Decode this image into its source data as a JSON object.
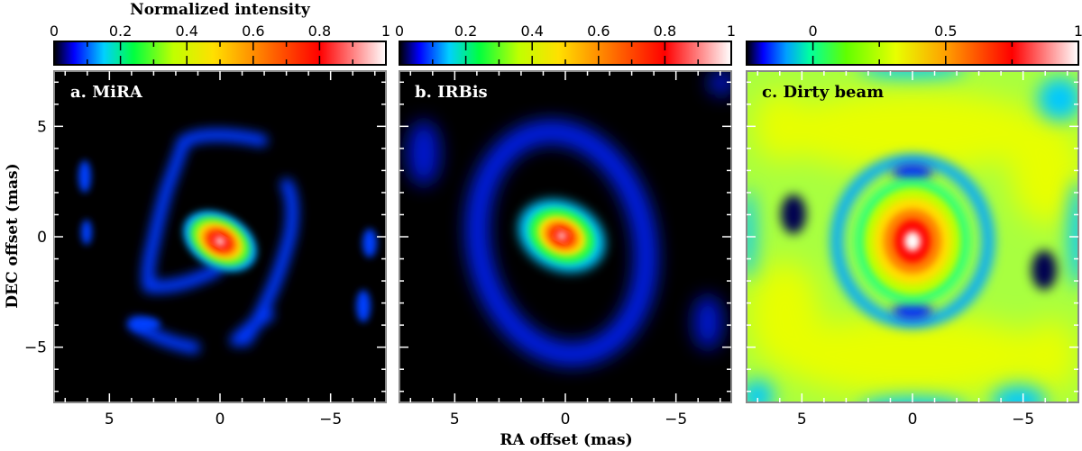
{
  "figure": {
    "colorbar_title": "Normalized intensity",
    "xlabel": "RA offset (mas)",
    "ylabel": "DEC offset (mas)"
  },
  "chart_data": [
    {
      "type": "heatmap",
      "panel_label": "a. MiRA",
      "xlim": [
        7.5,
        -7.5
      ],
      "ylim": [
        -7.5,
        7.5
      ],
      "xticks": [
        5,
        0,
        -5
      ],
      "yticks": [
        5,
        0,
        -5
      ],
      "colorbar": {
        "range": [
          0,
          1
        ],
        "ticks": [
          0,
          0.2,
          0.4,
          0.6,
          0.8,
          1
        ],
        "tick_labels": [
          "0",
          "0.2",
          "0.4",
          "0.6",
          "0.8",
          "1"
        ],
        "colormap": "black-blue-cyan-green-yellow-orange-red-white"
      },
      "background_level": 0,
      "peak": {
        "x": 0,
        "y": 0,
        "value": 1
      },
      "features": [
        {
          "kind": "central-ellipse",
          "x": 0,
          "y": 0,
          "size": [
            2.0,
            1.3
          ],
          "angle_deg": 30,
          "peak": 1.0
        },
        {
          "kind": "arc",
          "description_level": 0.15,
          "path": [
            [
              1.7,
              3.8
            ],
            [
              1.2,
              2.8
            ],
            [
              2.2,
              2.4
            ],
            [
              2.8,
              0.8
            ],
            [
              3.0,
              -1.2
            ],
            [
              3.3,
              -3.0
            ],
            [
              3.8,
              -4.3
            ]
          ]
        },
        {
          "kind": "arc",
          "description_level": 0.15,
          "path": [
            [
              -1.8,
              1.8
            ],
            [
              -2.3,
              0.5
            ],
            [
              -1.8,
              -0.8
            ],
            [
              -1.0,
              -1.8
            ],
            [
              -1.2,
              -3.2
            ],
            [
              -1.5,
              -4.3
            ]
          ]
        },
        {
          "kind": "blob",
          "x": 6.1,
          "y": 2.7,
          "level": 0.2
        },
        {
          "kind": "blob",
          "x": 6.0,
          "y": 0.3,
          "level": 0.15
        },
        {
          "kind": "blob",
          "x": -6.8,
          "y": -0.1,
          "level": 0.25
        },
        {
          "kind": "blob",
          "x": -6.5,
          "y": -3.0,
          "level": 0.2
        },
        {
          "kind": "blob",
          "x": 3.2,
          "y": -4.2,
          "level": 0.2
        }
      ]
    },
    {
      "type": "heatmap",
      "panel_label": "b. IRBis",
      "xlim": [
        7.5,
        -7.5
      ],
      "ylim": [
        -7.5,
        7.5
      ],
      "xticks": [
        5,
        0,
        -5
      ],
      "yticks": [
        5,
        0,
        -5
      ],
      "colorbar": {
        "range": [
          0,
          1
        ],
        "ticks": [
          0,
          0.2,
          0.4,
          0.6,
          0.8,
          1
        ],
        "tick_labels": [
          "0",
          "0.2",
          "0.4",
          "0.6",
          "0.8",
          "1"
        ],
        "colormap": "black-blue-cyan-green-yellow-orange-red-white"
      },
      "background_level": 0,
      "peak": {
        "x": 0,
        "y": 0,
        "value": 1
      },
      "features": [
        {
          "kind": "central-ellipse",
          "x": 0,
          "y": 0,
          "size": [
            1.9,
            1.5
          ],
          "angle_deg": 25,
          "peak": 1.0
        },
        {
          "kind": "ring",
          "x": -0.1,
          "y": -0.2,
          "radii": [
            3.3,
            4.6
          ],
          "angle_deg": -15,
          "level": 0.15
        },
        {
          "kind": "blob",
          "x": 5.0,
          "y": 3.5,
          "level": 0.08
        },
        {
          "kind": "blob",
          "x": -5.0,
          "y": -4.5,
          "level": 0.1
        }
      ]
    },
    {
      "type": "heatmap",
      "panel_label": "c. Dirty beam",
      "xlim": [
        7.5,
        -7.5
      ],
      "ylim": [
        -7.5,
        7.5
      ],
      "xticks": [
        5,
        0,
        -5
      ],
      "yticks": [
        5,
        0,
        -5
      ],
      "colorbar": {
        "range": [
          -0.25,
          1
        ],
        "ticks": [
          0,
          0.5,
          1
        ],
        "tick_labels": [
          "0",
          "0.5",
          "1"
        ],
        "colormap": "black-blue-cyan-green-yellow-orange-red-white"
      },
      "peak": {
        "x": 0,
        "y": 0,
        "value": 1
      },
      "features": [
        {
          "kind": "central-peak",
          "x": 0,
          "y": 0,
          "size": [
            1.5,
            1.7
          ],
          "peak": 1.0
        },
        {
          "kind": "dark-ring",
          "x": 0,
          "y": 0,
          "radius": 2.6,
          "level": 0.05
        },
        {
          "kind": "green-ring",
          "x": 0,
          "y": 0,
          "radius": 3.6,
          "level": 0.25
        },
        {
          "kind": "yellow-lobes",
          "positions": [
            [
              0,
              5.2
            ],
            [
              0,
              -5.5
            ],
            [
              5.6,
              4.0
            ],
            [
              -5.6,
              -4.0
            ],
            [
              -4.5,
              4.5
            ],
            [
              4.5,
              -4.5
            ]
          ],
          "level": 0.45
        },
        {
          "kind": "negative-holes",
          "positions": [
            [
              5.3,
              1.2
            ],
            [
              -5.7,
              -1.3
            ],
            [
              0.2,
              3.2
            ],
            [
              0.2,
              -3.4
            ]
          ],
          "level": -0.2
        }
      ]
    }
  ]
}
